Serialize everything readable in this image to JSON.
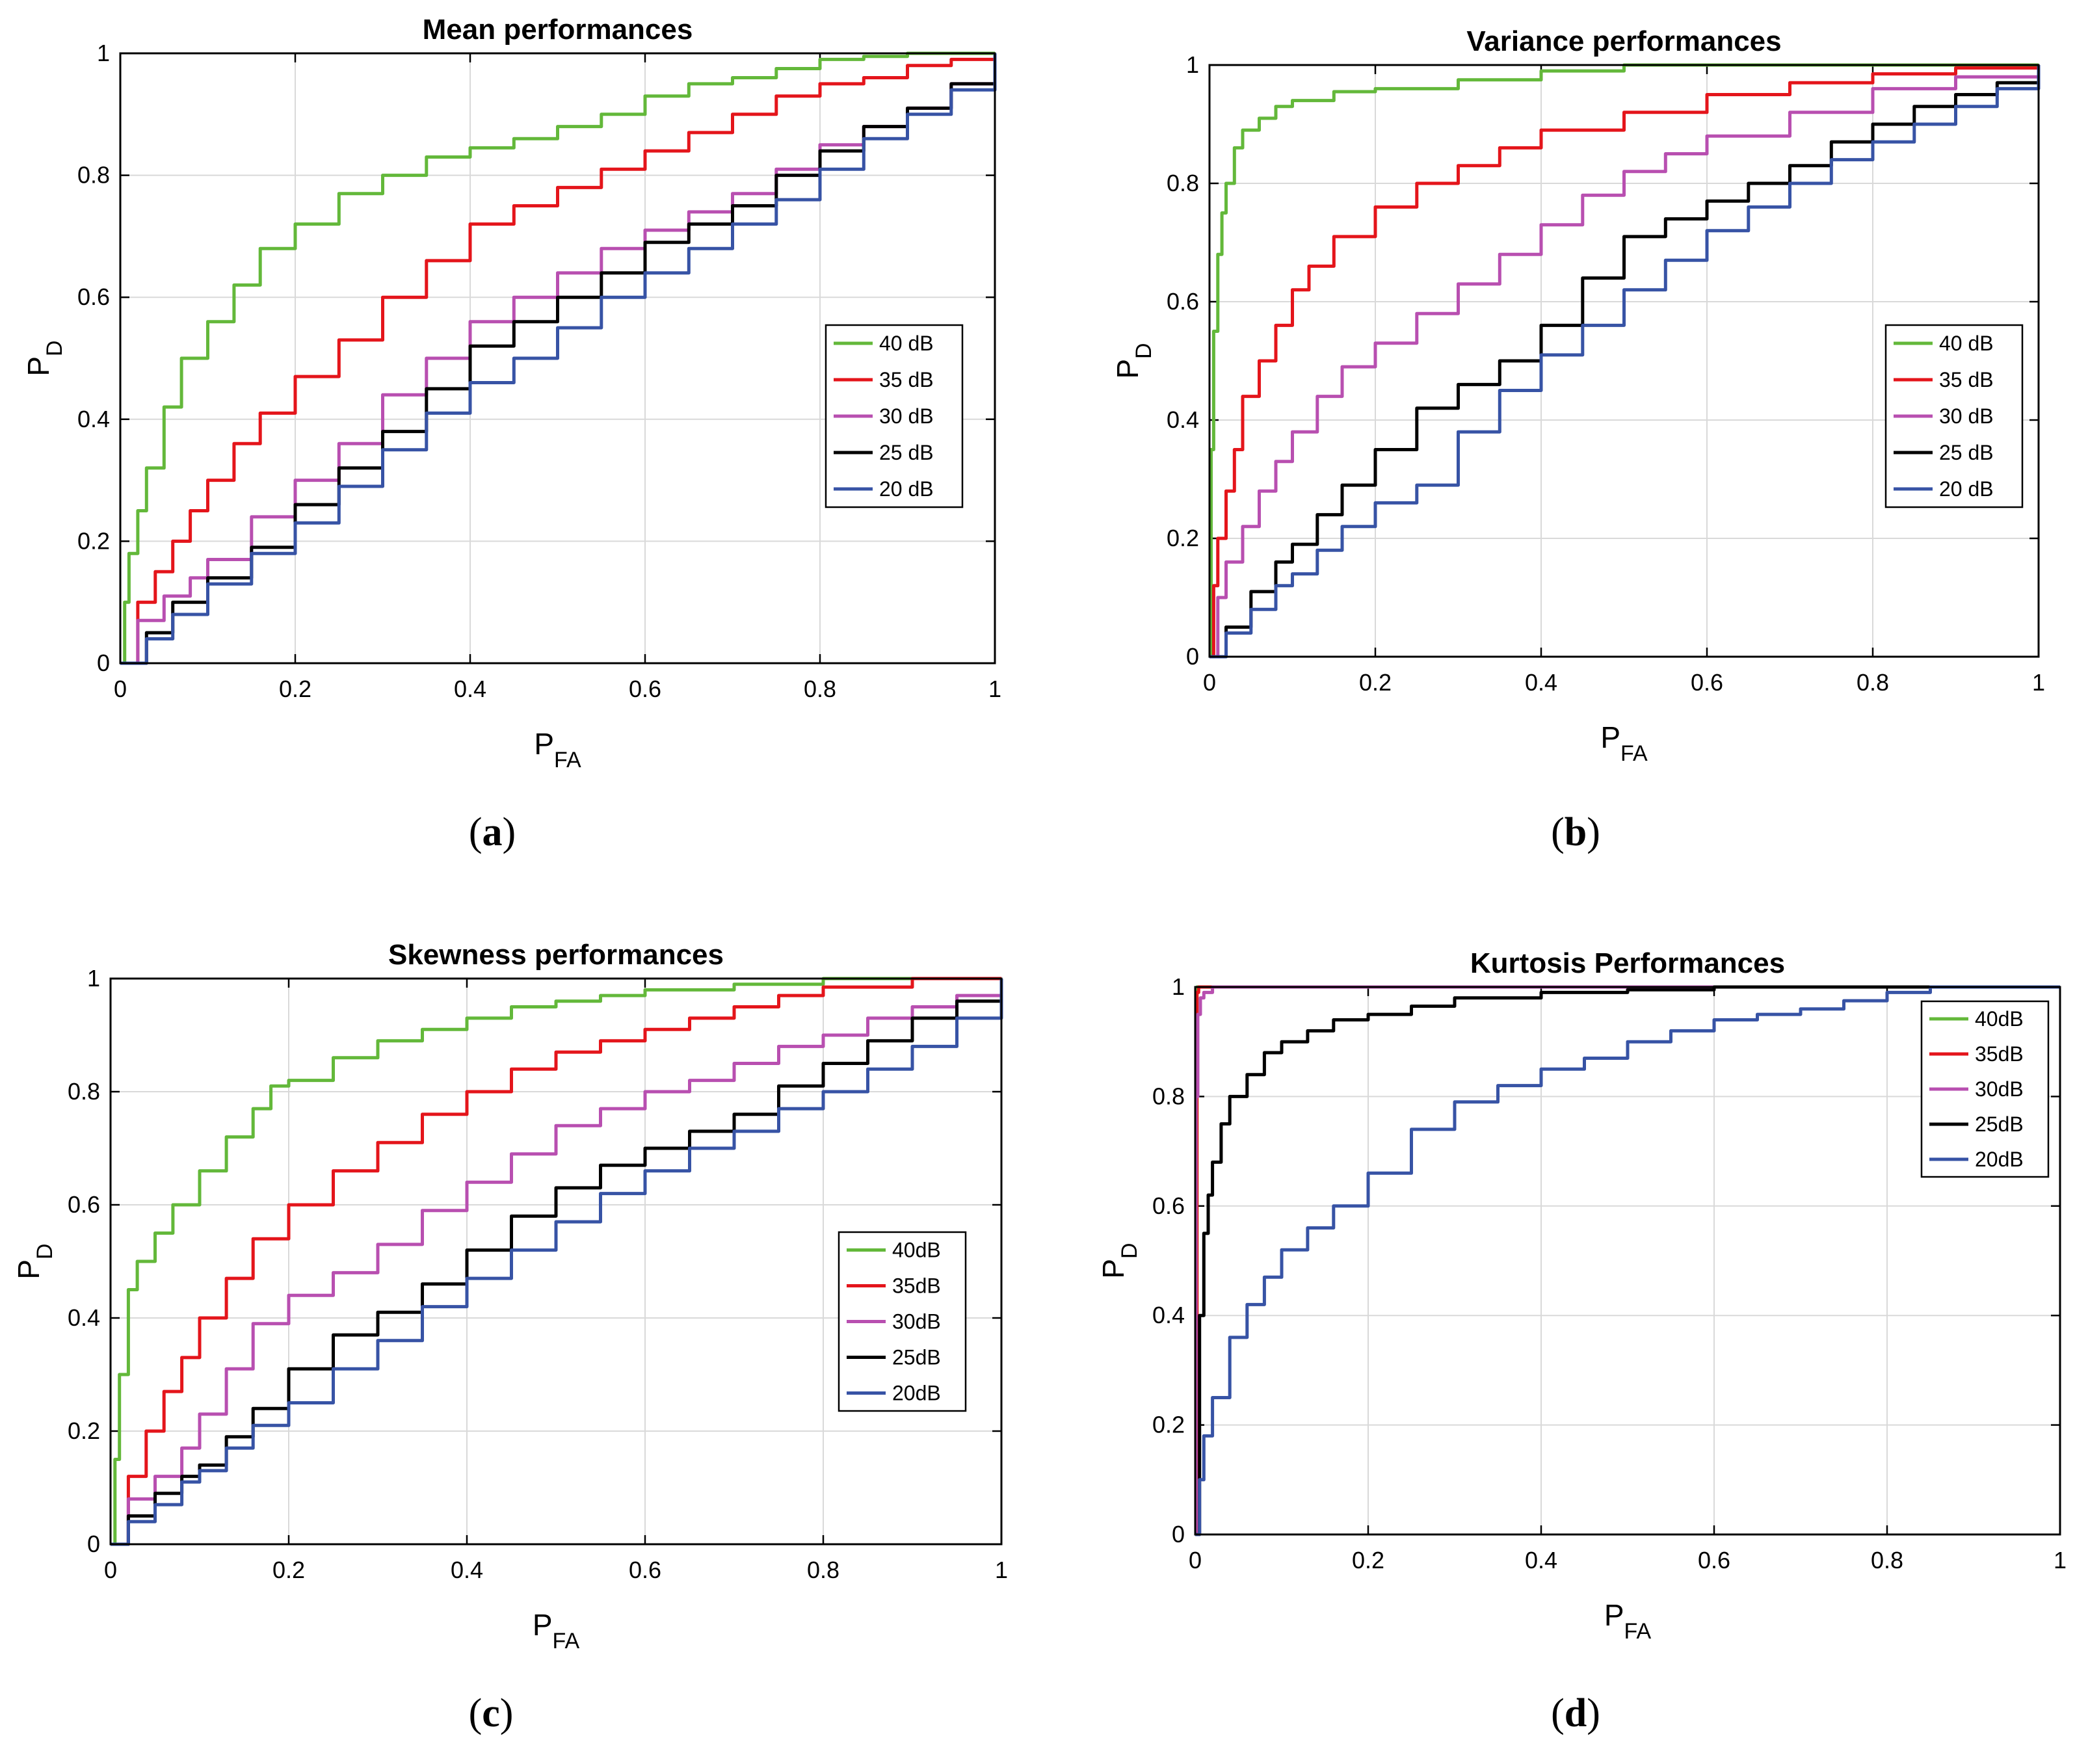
{
  "colors": {
    "green": "#63b83a",
    "red": "#e4151b",
    "magenta": "#b84fb0",
    "black": "#000000",
    "blue": "#3753a5"
  },
  "chart_data": [
    {
      "type": "line",
      "title": "Mean performances",
      "caption": "a",
      "xlabel": "P",
      "xlabel_sub": "FA",
      "ylabel": "P",
      "ylabel_sub": "D",
      "xlim": [
        0,
        1
      ],
      "ylim": [
        0,
        1
      ],
      "xticks": [
        "0",
        "0.2",
        "0.4",
        "0.6",
        "0.8",
        "1"
      ],
      "yticks": [
        "0",
        "0.2",
        "0.4",
        "0.6",
        "0.8",
        "1"
      ],
      "grid": true,
      "legend_position": "center-right",
      "series": [
        {
          "name": "40 dB",
          "color": "green",
          "x": [
            0,
            0.005,
            0.01,
            0.02,
            0.03,
            0.05,
            0.07,
            0.1,
            0.13,
            0.16,
            0.2,
            0.25,
            0.3,
            0.35,
            0.4,
            0.45,
            0.5,
            0.55,
            0.6,
            0.65,
            0.7,
            0.75,
            0.8,
            0.85,
            0.9,
            0.95,
            1
          ],
          "y": [
            0,
            0.1,
            0.18,
            0.25,
            0.32,
            0.42,
            0.5,
            0.56,
            0.62,
            0.68,
            0.72,
            0.77,
            0.8,
            0.83,
            0.845,
            0.86,
            0.88,
            0.9,
            0.93,
            0.95,
            0.96,
            0.975,
            0.99,
            0.995,
            1,
            1,
            1
          ]
        },
        {
          "name": "35 dB",
          "color": "red",
          "x": [
            0,
            0.02,
            0.04,
            0.06,
            0.08,
            0.1,
            0.13,
            0.16,
            0.2,
            0.25,
            0.3,
            0.35,
            0.4,
            0.45,
            0.5,
            0.55,
            0.6,
            0.65,
            0.7,
            0.75,
            0.8,
            0.85,
            0.9,
            0.95,
            1
          ],
          "y": [
            0,
            0.1,
            0.15,
            0.2,
            0.25,
            0.3,
            0.36,
            0.41,
            0.47,
            0.53,
            0.6,
            0.66,
            0.72,
            0.75,
            0.78,
            0.81,
            0.84,
            0.87,
            0.9,
            0.93,
            0.95,
            0.96,
            0.98,
            0.99,
            1
          ]
        },
        {
          "name": "30 dB",
          "color": "magenta",
          "x": [
            0,
            0.02,
            0.05,
            0.08,
            0.1,
            0.15,
            0.2,
            0.25,
            0.3,
            0.35,
            0.4,
            0.45,
            0.5,
            0.55,
            0.6,
            0.65,
            0.7,
            0.75,
            0.8,
            0.85,
            0.9,
            0.95,
            1
          ],
          "y": [
            0,
            0.07,
            0.11,
            0.14,
            0.17,
            0.24,
            0.3,
            0.36,
            0.44,
            0.5,
            0.56,
            0.6,
            0.64,
            0.68,
            0.71,
            0.74,
            0.77,
            0.81,
            0.85,
            0.88,
            0.91,
            0.95,
            1
          ]
        },
        {
          "name": "25 dB",
          "color": "black",
          "x": [
            0,
            0.03,
            0.06,
            0.1,
            0.15,
            0.2,
            0.25,
            0.3,
            0.35,
            0.4,
            0.45,
            0.5,
            0.55,
            0.6,
            0.65,
            0.7,
            0.75,
            0.8,
            0.85,
            0.9,
            0.95,
            1
          ],
          "y": [
            0,
            0.05,
            0.1,
            0.14,
            0.19,
            0.26,
            0.32,
            0.38,
            0.45,
            0.52,
            0.56,
            0.6,
            0.64,
            0.69,
            0.72,
            0.75,
            0.8,
            0.84,
            0.88,
            0.91,
            0.95,
            1
          ]
        },
        {
          "name": "20 dB",
          "color": "blue",
          "x": [
            0,
            0.03,
            0.06,
            0.1,
            0.15,
            0.2,
            0.25,
            0.3,
            0.35,
            0.4,
            0.45,
            0.5,
            0.55,
            0.6,
            0.65,
            0.7,
            0.75,
            0.8,
            0.85,
            0.9,
            0.95,
            1
          ],
          "y": [
            0,
            0.04,
            0.08,
            0.13,
            0.18,
            0.23,
            0.29,
            0.35,
            0.41,
            0.46,
            0.5,
            0.55,
            0.6,
            0.64,
            0.68,
            0.72,
            0.76,
            0.81,
            0.86,
            0.9,
            0.94,
            1
          ]
        }
      ]
    },
    {
      "type": "line",
      "title": "Variance performances",
      "caption": "b",
      "xlabel": "P",
      "xlabel_sub": "FA",
      "ylabel": "P",
      "ylabel_sub": "D",
      "xlim": [
        0,
        1
      ],
      "ylim": [
        0,
        1
      ],
      "xticks": [
        "0",
        "0.2",
        "0.4",
        "0.6",
        "0.8",
        "1"
      ],
      "yticks": [
        "0",
        "0.2",
        "0.4",
        "0.6",
        "0.8",
        "1"
      ],
      "grid": true,
      "legend_position": "center-right",
      "series": [
        {
          "name": "40 dB",
          "color": "green",
          "x": [
            0,
            0.002,
            0.005,
            0.01,
            0.015,
            0.02,
            0.03,
            0.04,
            0.06,
            0.08,
            0.1,
            0.15,
            0.2,
            0.3,
            0.4,
            0.5,
            0.6,
            0.8,
            1
          ],
          "y": [
            0,
            0.35,
            0.55,
            0.68,
            0.75,
            0.8,
            0.86,
            0.89,
            0.91,
            0.93,
            0.94,
            0.955,
            0.96,
            0.975,
            0.99,
            1,
            1,
            1,
            1
          ]
        },
        {
          "name": "35 dB",
          "color": "red",
          "x": [
            0,
            0.005,
            0.01,
            0.02,
            0.03,
            0.04,
            0.06,
            0.08,
            0.1,
            0.12,
            0.15,
            0.2,
            0.25,
            0.3,
            0.35,
            0.4,
            0.5,
            0.6,
            0.7,
            0.8,
            0.9,
            1
          ],
          "y": [
            0,
            0.12,
            0.2,
            0.28,
            0.35,
            0.44,
            0.5,
            0.56,
            0.62,
            0.66,
            0.71,
            0.76,
            0.8,
            0.83,
            0.86,
            0.89,
            0.92,
            0.95,
            0.97,
            0.985,
            0.995,
            1
          ]
        },
        {
          "name": "30 dB",
          "color": "magenta",
          "x": [
            0,
            0.01,
            0.02,
            0.04,
            0.06,
            0.08,
            0.1,
            0.13,
            0.16,
            0.2,
            0.25,
            0.3,
            0.35,
            0.4,
            0.45,
            0.5,
            0.55,
            0.6,
            0.7,
            0.8,
            0.9,
            1
          ],
          "y": [
            0,
            0.1,
            0.16,
            0.22,
            0.28,
            0.33,
            0.38,
            0.44,
            0.49,
            0.53,
            0.58,
            0.63,
            0.68,
            0.73,
            0.78,
            0.82,
            0.85,
            0.88,
            0.92,
            0.96,
            0.98,
            1
          ]
        },
        {
          "name": "25 dB",
          "color": "black",
          "x": [
            0,
            0.02,
            0.05,
            0.08,
            0.1,
            0.13,
            0.16,
            0.2,
            0.25,
            0.3,
            0.35,
            0.4,
            0.45,
            0.5,
            0.55,
            0.6,
            0.65,
            0.7,
            0.75,
            0.8,
            0.85,
            0.9,
            0.95,
            1
          ],
          "y": [
            0,
            0.05,
            0.11,
            0.16,
            0.19,
            0.24,
            0.29,
            0.35,
            0.42,
            0.46,
            0.5,
            0.56,
            0.64,
            0.71,
            0.74,
            0.77,
            0.8,
            0.83,
            0.87,
            0.9,
            0.93,
            0.95,
            0.97,
            1
          ]
        },
        {
          "name": "20 dB",
          "color": "blue",
          "x": [
            0,
            0.02,
            0.05,
            0.08,
            0.1,
            0.13,
            0.16,
            0.2,
            0.25,
            0.3,
            0.35,
            0.4,
            0.45,
            0.5,
            0.55,
            0.6,
            0.65,
            0.7,
            0.75,
            0.8,
            0.85,
            0.9,
            0.95,
            1
          ],
          "y": [
            0,
            0.04,
            0.08,
            0.12,
            0.14,
            0.18,
            0.22,
            0.26,
            0.29,
            0.38,
            0.45,
            0.51,
            0.56,
            0.62,
            0.67,
            0.72,
            0.76,
            0.8,
            0.84,
            0.87,
            0.9,
            0.93,
            0.96,
            1
          ]
        }
      ]
    },
    {
      "type": "line",
      "title": "Skewness performances",
      "caption": "c",
      "xlabel": "P",
      "xlabel_sub": "FA",
      "ylabel": "P",
      "ylabel_sub": "D",
      "xlim": [
        0,
        1
      ],
      "ylim": [
        0,
        1
      ],
      "xticks": [
        "0",
        "0.2",
        "0.4",
        "0.6",
        "0.8",
        "1"
      ],
      "yticks": [
        "0",
        "0.2",
        "0.4",
        "0.6",
        "0.8",
        "1"
      ],
      "grid": true,
      "legend_position": "center-right",
      "series": [
        {
          "name": "40dB",
          "color": "green",
          "x": [
            0,
            0.005,
            0.01,
            0.02,
            0.03,
            0.05,
            0.07,
            0.1,
            0.13,
            0.16,
            0.18,
            0.2,
            0.25,
            0.3,
            0.35,
            0.4,
            0.45,
            0.5,
            0.55,
            0.6,
            0.7,
            0.8,
            0.9,
            1
          ],
          "y": [
            0,
            0.15,
            0.3,
            0.45,
            0.5,
            0.55,
            0.6,
            0.66,
            0.72,
            0.77,
            0.81,
            0.82,
            0.86,
            0.89,
            0.91,
            0.93,
            0.95,
            0.96,
            0.97,
            0.98,
            0.99,
            1,
            1,
            1
          ]
        },
        {
          "name": "35dB",
          "color": "red",
          "x": [
            0,
            0.02,
            0.04,
            0.06,
            0.08,
            0.1,
            0.13,
            0.16,
            0.2,
            0.25,
            0.3,
            0.35,
            0.4,
            0.45,
            0.5,
            0.55,
            0.6,
            0.65,
            0.7,
            0.75,
            0.8,
            0.9,
            1
          ],
          "y": [
            0,
            0.12,
            0.2,
            0.27,
            0.33,
            0.4,
            0.47,
            0.54,
            0.6,
            0.66,
            0.71,
            0.76,
            0.8,
            0.84,
            0.87,
            0.89,
            0.91,
            0.93,
            0.95,
            0.97,
            0.985,
            1,
            1
          ]
        },
        {
          "name": "30dB",
          "color": "magenta",
          "x": [
            0,
            0.02,
            0.05,
            0.08,
            0.1,
            0.13,
            0.16,
            0.2,
            0.25,
            0.3,
            0.35,
            0.4,
            0.45,
            0.5,
            0.55,
            0.6,
            0.65,
            0.7,
            0.75,
            0.8,
            0.85,
            0.9,
            0.95,
            1
          ],
          "y": [
            0,
            0.08,
            0.12,
            0.17,
            0.23,
            0.31,
            0.39,
            0.44,
            0.48,
            0.53,
            0.59,
            0.64,
            0.69,
            0.74,
            0.77,
            0.8,
            0.82,
            0.85,
            0.88,
            0.9,
            0.93,
            0.95,
            0.97,
            1
          ]
        },
        {
          "name": "25dB",
          "color": "black",
          "x": [
            0,
            0.02,
            0.05,
            0.08,
            0.1,
            0.13,
            0.16,
            0.2,
            0.25,
            0.3,
            0.35,
            0.4,
            0.45,
            0.5,
            0.55,
            0.6,
            0.65,
            0.7,
            0.75,
            0.8,
            0.85,
            0.9,
            0.95,
            1
          ],
          "y": [
            0,
            0.05,
            0.09,
            0.12,
            0.14,
            0.19,
            0.24,
            0.31,
            0.37,
            0.41,
            0.46,
            0.52,
            0.58,
            0.63,
            0.67,
            0.7,
            0.73,
            0.76,
            0.81,
            0.85,
            0.89,
            0.93,
            0.96,
            1
          ]
        },
        {
          "name": "20dB",
          "color": "blue",
          "x": [
            0,
            0.02,
            0.05,
            0.08,
            0.1,
            0.13,
            0.16,
            0.2,
            0.25,
            0.3,
            0.35,
            0.4,
            0.45,
            0.5,
            0.55,
            0.6,
            0.65,
            0.7,
            0.75,
            0.8,
            0.85,
            0.9,
            0.95,
            1
          ],
          "y": [
            0,
            0.04,
            0.07,
            0.11,
            0.13,
            0.17,
            0.21,
            0.25,
            0.31,
            0.36,
            0.42,
            0.47,
            0.52,
            0.57,
            0.62,
            0.66,
            0.7,
            0.73,
            0.77,
            0.8,
            0.84,
            0.88,
            0.93,
            1
          ]
        }
      ]
    },
    {
      "type": "line",
      "title": "Kurtosis Performances",
      "caption": "d",
      "xlabel": "P",
      "xlabel_sub": "FA",
      "ylabel": "P",
      "ylabel_sub": "D",
      "xlim": [
        0,
        1
      ],
      "ylim": [
        0,
        1
      ],
      "xticks": [
        "0",
        "0.2",
        "0.4",
        "0.6",
        "0.8",
        "1"
      ],
      "yticks": [
        "0",
        "0.2",
        "0.4",
        "0.6",
        "0.8",
        "1"
      ],
      "grid": true,
      "legend_position": "top-right",
      "series": [
        {
          "name": "40dB",
          "color": "green",
          "x": [
            0,
            0.002,
            0.005,
            0.01,
            1
          ],
          "y": [
            0,
            1,
            1,
            1,
            1
          ]
        },
        {
          "name": "35dB",
          "color": "red",
          "x": [
            0,
            0.002,
            0.004,
            0.01,
            1
          ],
          "y": [
            0,
            0.99,
            1,
            1,
            1
          ]
        },
        {
          "name": "30dB",
          "color": "magenta",
          "x": [
            0,
            0.001,
            0.003,
            0.006,
            0.01,
            0.02,
            1
          ],
          "y": [
            0,
            0.8,
            0.95,
            0.98,
            0.99,
            1,
            1
          ]
        },
        {
          "name": "25dB",
          "color": "black",
          "x": [
            0,
            0.005,
            0.01,
            0.015,
            0.02,
            0.03,
            0.04,
            0.06,
            0.08,
            0.1,
            0.13,
            0.16,
            0.2,
            0.25,
            0.3,
            0.4,
            0.5,
            0.6,
            0.8,
            1
          ],
          "y": [
            0,
            0.4,
            0.55,
            0.62,
            0.68,
            0.75,
            0.8,
            0.84,
            0.88,
            0.9,
            0.92,
            0.94,
            0.95,
            0.965,
            0.98,
            0.99,
            0.995,
            1,
            1,
            1
          ]
        },
        {
          "name": "20dB",
          "color": "blue",
          "x": [
            0,
            0.005,
            0.01,
            0.02,
            0.04,
            0.06,
            0.08,
            0.1,
            0.13,
            0.16,
            0.2,
            0.25,
            0.3,
            0.35,
            0.4,
            0.45,
            0.5,
            0.55,
            0.6,
            0.65,
            0.7,
            0.75,
            0.8,
            0.85,
            0.9,
            1
          ],
          "y": [
            0,
            0.1,
            0.18,
            0.25,
            0.36,
            0.42,
            0.47,
            0.52,
            0.56,
            0.6,
            0.66,
            0.74,
            0.79,
            0.82,
            0.85,
            0.87,
            0.9,
            0.92,
            0.94,
            0.95,
            0.96,
            0.975,
            0.99,
            1,
            1,
            1
          ]
        }
      ]
    }
  ]
}
